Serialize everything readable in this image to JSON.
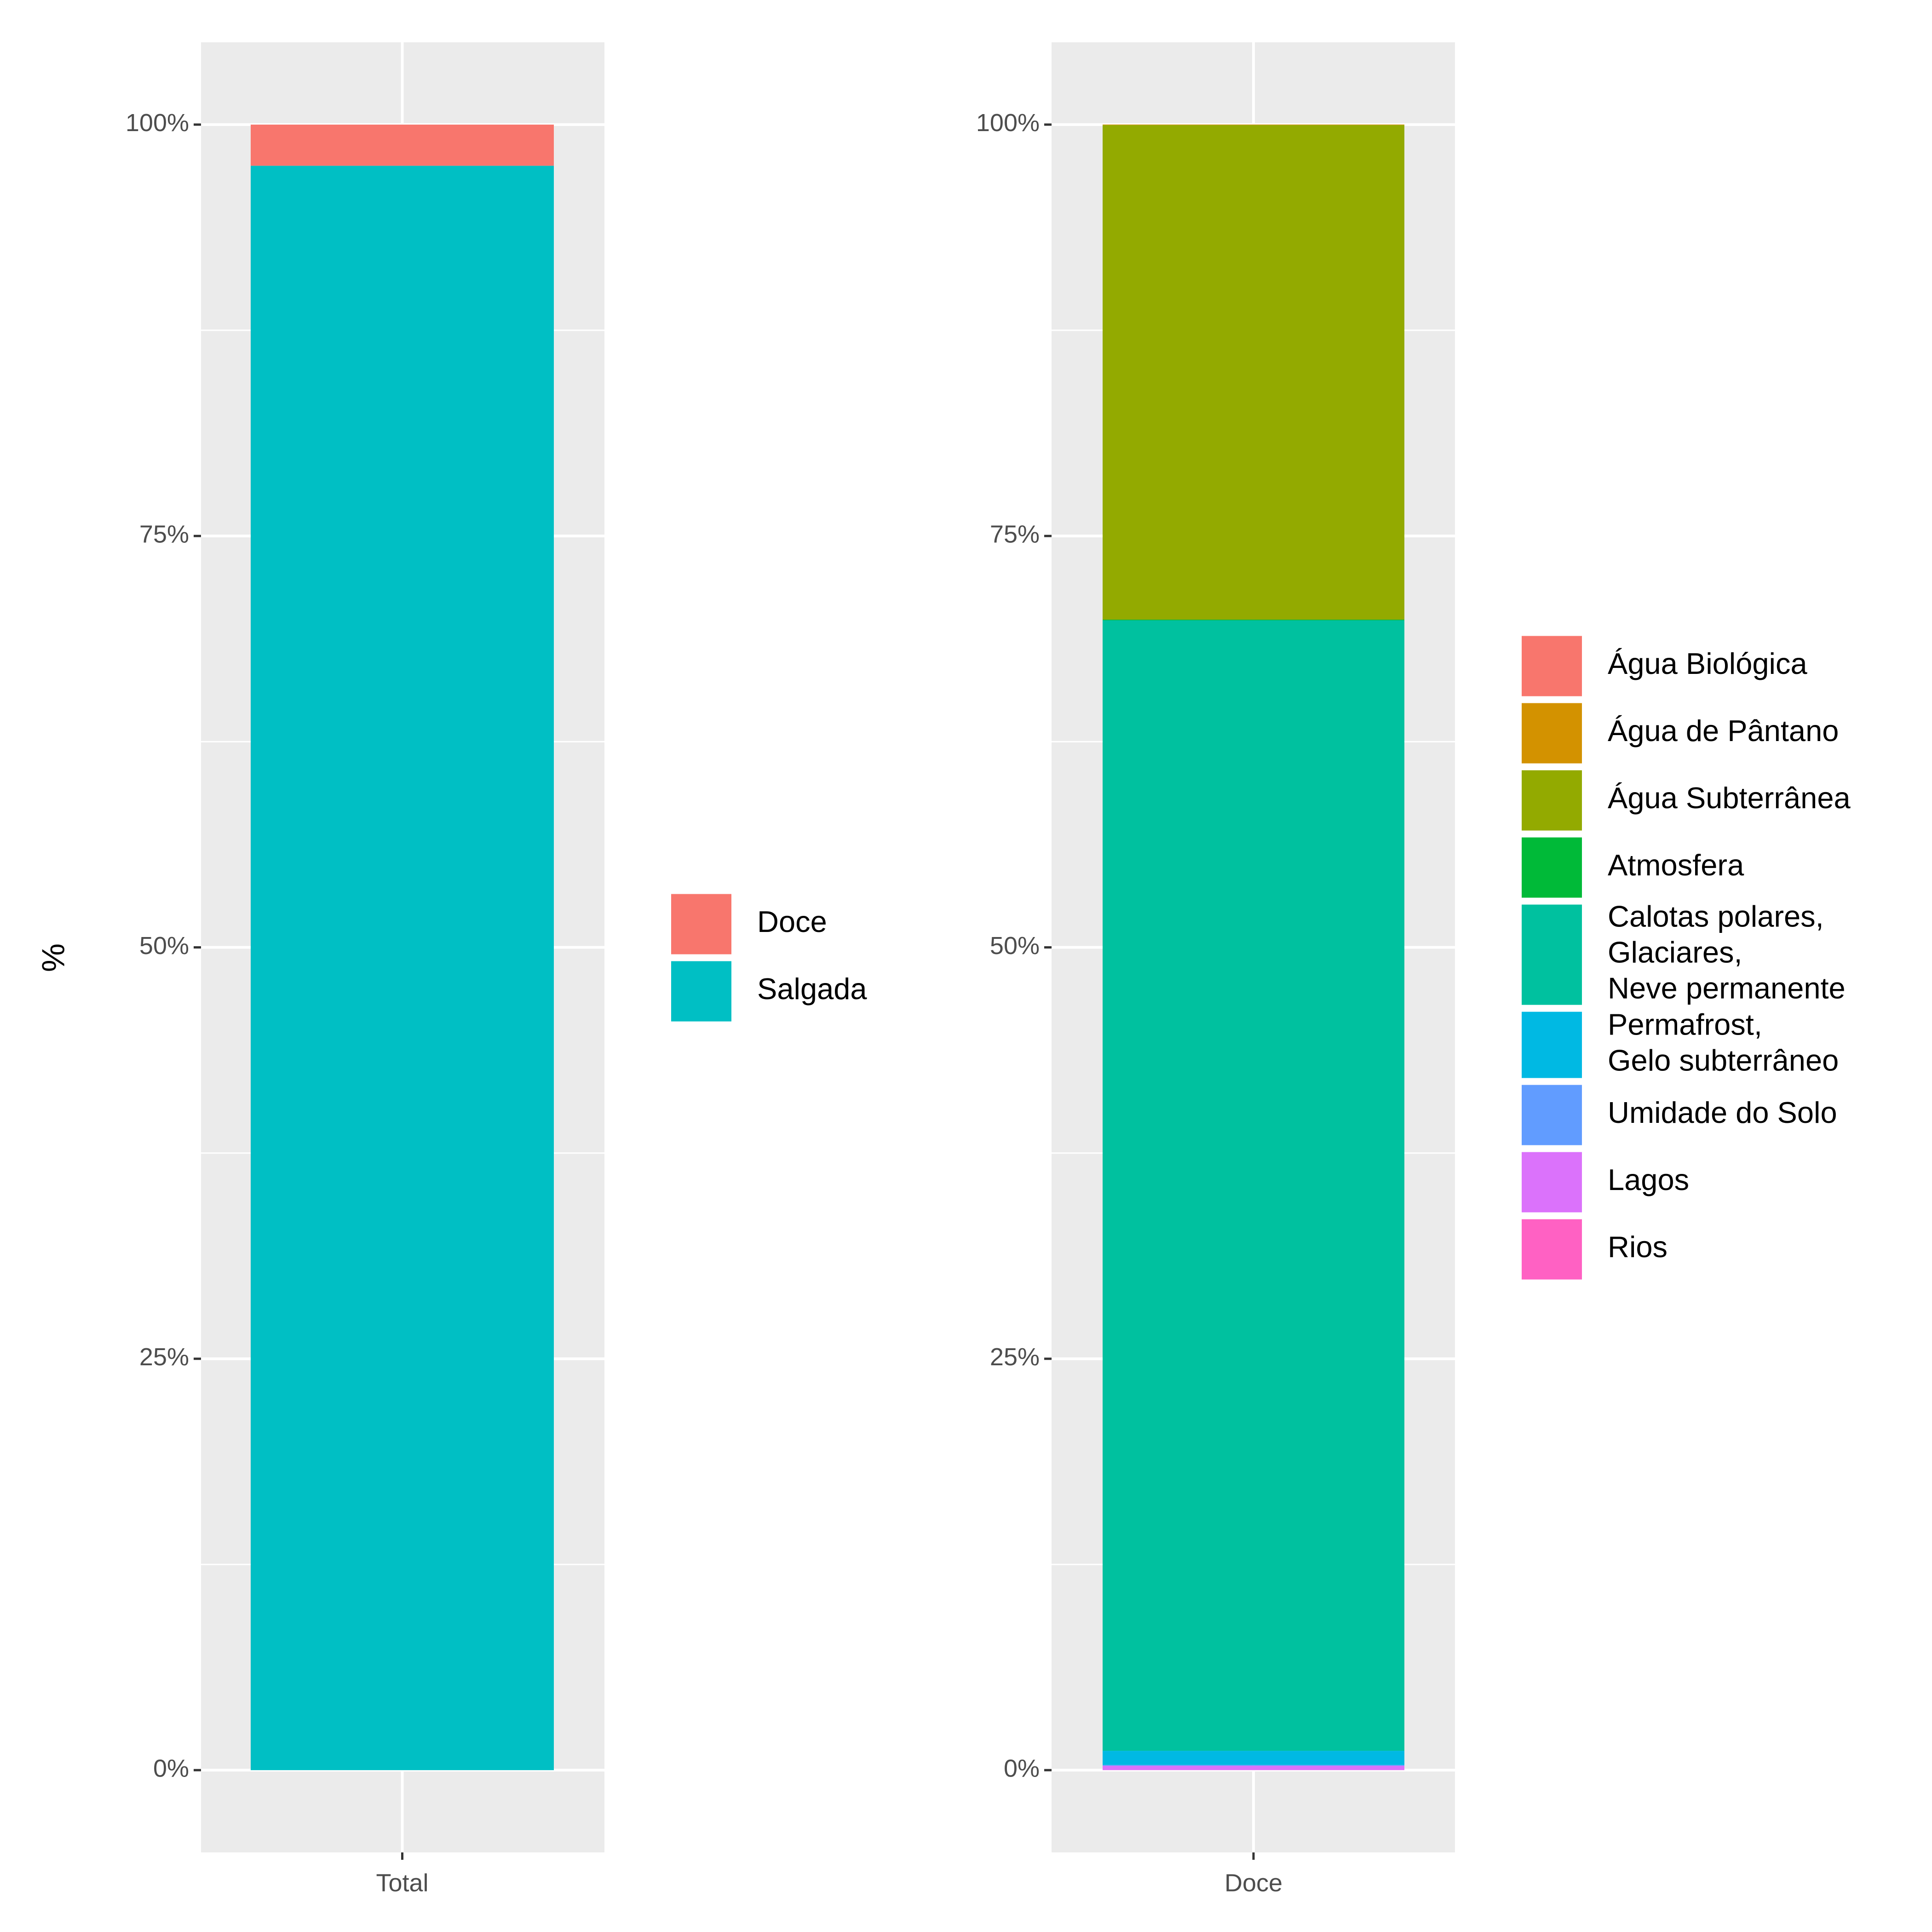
{
  "chart_data": [
    {
      "type": "stacked_bar",
      "ylabel": "%",
      "categories": [
        "Total"
      ],
      "series": [
        {
          "name": "Doce",
          "color": "#F8766D",
          "values": [
            2.5
          ]
        },
        {
          "name": "Salgada",
          "color": "#00BFC4",
          "values": [
            97.5
          ]
        }
      ],
      "ylim": [
        -5,
        105
      ],
      "yticks": [
        {
          "value": 0,
          "label": "0%"
        },
        {
          "value": 25,
          "label": "25%"
        },
        {
          "value": 50,
          "label": "50%"
        },
        {
          "value": 75,
          "label": "75%"
        },
        {
          "value": 100,
          "label": "100%"
        }
      ],
      "grid": true,
      "legend": "right"
    },
    {
      "type": "stacked_bar",
      "categories": [
        "Doce"
      ],
      "series": [
        {
          "name": "Água Biológica",
          "color": "#F8766D",
          "values": [
            0.003
          ]
        },
        {
          "name": "Água de Pântano",
          "color": "#D39200",
          "values": [
            0.03
          ]
        },
        {
          "name": "Água Subterrânea",
          "color": "#93AA00",
          "values": [
            30.06
          ]
        },
        {
          "name": "Atmosfera",
          "color": "#00BA38",
          "values": [
            0.04
          ]
        },
        {
          "name": "Calotas polares,\nGlaciares,\nNeve permanente",
          "color": "#00C19F",
          "values": [
            68.7
          ]
        },
        {
          "name": "Permafrost,\nGelo subterrâneo",
          "color": "#00B9E3",
          "values": [
            0.86
          ]
        },
        {
          "name": "Umidade do Solo",
          "color": "#619CFF",
          "values": [
            0.05
          ]
        },
        {
          "name": "Lagos",
          "color": "#DB72FB",
          "values": [
            0.26
          ]
        },
        {
          "name": "Rios",
          "color": "#FF61C3",
          "values": [
            0.006
          ]
        }
      ],
      "ylim": [
        -5,
        105
      ],
      "yticks": [
        {
          "value": 0,
          "label": "0%"
        },
        {
          "value": 25,
          "label": "25%"
        },
        {
          "value": 50,
          "label": "50%"
        },
        {
          "value": 75,
          "label": "75%"
        },
        {
          "value": 100,
          "label": "100%"
        }
      ],
      "grid": true,
      "legend": "right"
    }
  ]
}
